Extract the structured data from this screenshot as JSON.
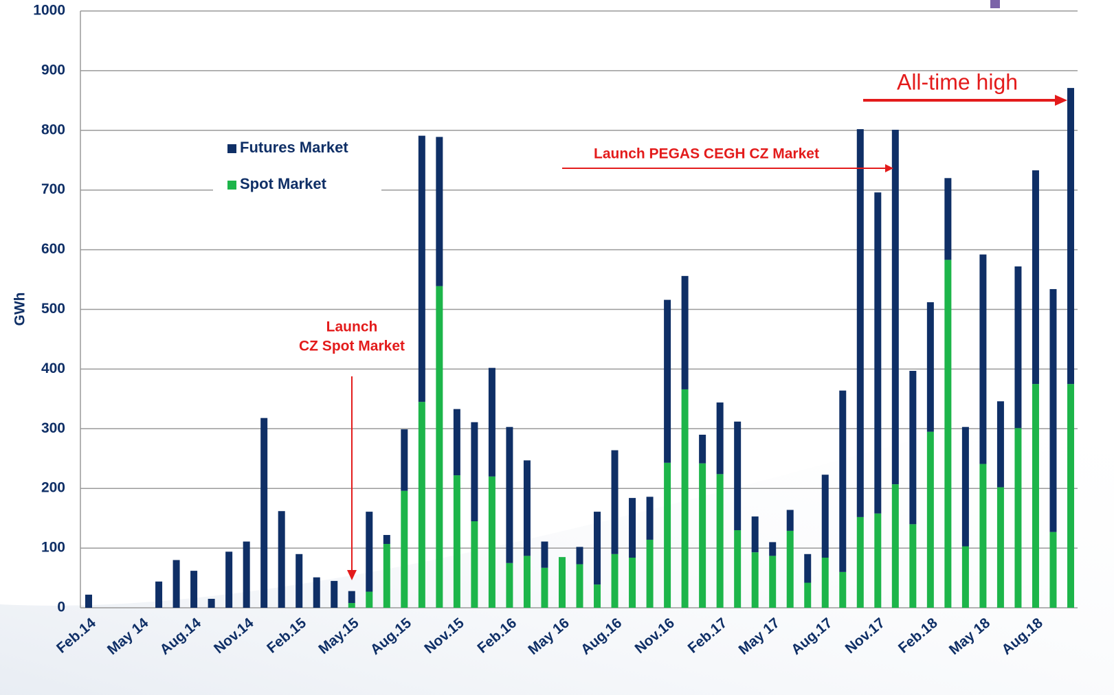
{
  "chart_data": {
    "type": "stacked_bar",
    "y_label": "GWh",
    "categories": [
      "Feb.14",
      null,
      null,
      "May 14",
      null,
      null,
      "Aug.14",
      null,
      null,
      "Nov.14",
      null,
      null,
      "Feb.15",
      null,
      null,
      "May.15",
      null,
      null,
      "Aug.15",
      null,
      null,
      "Nov.15",
      null,
      null,
      "Feb.16",
      null,
      null,
      "May 16",
      null,
      null,
      "Aug.16",
      null,
      null,
      "Nov.16",
      null,
      null,
      "Feb.17",
      null,
      null,
      "May 17",
      null,
      null,
      "Aug.17",
      null,
      null,
      "Nov.17",
      null,
      null,
      "Feb.18",
      null,
      null,
      "May 18",
      null,
      null,
      "Aug.18",
      null,
      null
    ],
    "series": [
      {
        "name": "Futures Market",
        "color": "#0f2f66",
        "values": [
          22,
          0,
          0,
          0,
          44,
          80,
          62,
          15,
          94,
          111,
          318,
          162,
          90,
          51,
          45,
          20,
          134,
          15,
          103,
          446,
          250,
          111,
          166,
          182,
          228,
          160,
          44,
          0,
          29,
          122,
          174,
          100,
          72,
          273,
          190,
          48,
          120,
          182,
          60,
          23,
          35,
          48,
          139,
          304,
          650,
          538,
          594,
          257,
          217,
          137,
          200,
          351,
          144,
          271,
          358,
          407,
          496
        ]
      },
      {
        "name": "Spot Market",
        "color": "#1db54a",
        "values": [
          0,
          0,
          0,
          0,
          0,
          0,
          0,
          0,
          0,
          0,
          0,
          0,
          0,
          0,
          0,
          8,
          27,
          107,
          196,
          345,
          539,
          222,
          145,
          220,
          75,
          87,
          67,
          85,
          73,
          39,
          90,
          84,
          114,
          243,
          366,
          242,
          224,
          130,
          93,
          87,
          129,
          42,
          84,
          60,
          152,
          158,
          207,
          140,
          295,
          583,
          103,
          241,
          202,
          301,
          375,
          127,
          375
        ]
      }
    ],
    "ylim": [
      0,
      1000
    ],
    "yticks": [
      0,
      100,
      200,
      300,
      400,
      500,
      600,
      700,
      800,
      900,
      1000
    ],
    "grid": true,
    "annotations": [
      "Launch",
      "CZ Spot Market",
      "Launch PEGAS CEGH CZ Market",
      "All-time high"
    ]
  }
}
